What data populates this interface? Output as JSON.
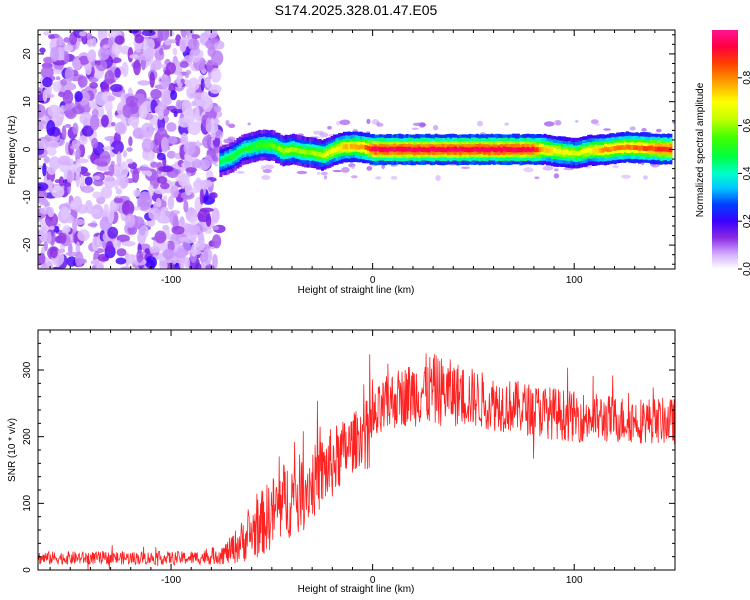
{
  "chart_data": [
    {
      "type": "heatmap",
      "title": "S174.2025.328.01.47.E05",
      "xlabel": "Height of straight line (km)",
      "ylabel": "Frequency (Hz)",
      "xlim": [
        -166,
        150
      ],
      "ylim": [
        -25,
        25
      ],
      "xticks": [
        -100,
        0,
        100
      ],
      "yticks": [
        -20,
        -10,
        0,
        10,
        20
      ],
      "colorbar": {
        "label": "Normalized spectral amplitude",
        "range": [
          0,
          1
        ],
        "ticks": [
          "0.0",
          "0.2",
          "0.4",
          "0.6",
          "0.8"
        ]
      },
      "noise_region": {
        "x_range": [
          -166,
          -80
        ],
        "freq_range": [
          -25,
          25
        ],
        "amplitude": "0.05-0.2"
      },
      "signal_ridge": [
        {
          "x": -76,
          "freq": -2.5,
          "amp": 0.45
        },
        {
          "x": -70,
          "freq": -1.5,
          "amp": 0.5
        },
        {
          "x": -65,
          "freq": 0.0,
          "amp": 0.5
        },
        {
          "x": -60,
          "freq": 0.5,
          "amp": 0.5
        },
        {
          "x": -55,
          "freq": 1.0,
          "amp": 0.55
        },
        {
          "x": -50,
          "freq": 0.8,
          "amp": 0.55
        },
        {
          "x": -45,
          "freq": -0.3,
          "amp": 0.6
        },
        {
          "x": -40,
          "freq": 0.0,
          "amp": 0.6
        },
        {
          "x": -35,
          "freq": -0.5,
          "amp": 0.6
        },
        {
          "x": -30,
          "freq": -0.7,
          "amp": 0.6
        },
        {
          "x": -25,
          "freq": -1.2,
          "amp": 0.65
        },
        {
          "x": -20,
          "freq": -0.2,
          "amp": 0.7
        },
        {
          "x": -15,
          "freq": 0.5,
          "amp": 0.75
        },
        {
          "x": -10,
          "freq": 0.6,
          "amp": 0.75
        },
        {
          "x": -5,
          "freq": 0.4,
          "amp": 0.8
        },
        {
          "x": 0,
          "freq": 0.0,
          "amp": 0.95
        },
        {
          "x": 40,
          "freq": 0.0,
          "amp": 0.95
        },
        {
          "x": 78,
          "freq": 0.0,
          "amp": 0.95
        },
        {
          "x": 85,
          "freq": 0.0,
          "amp": 0.75
        },
        {
          "x": 93,
          "freq": -0.5,
          "amp": 0.7
        },
        {
          "x": 100,
          "freq": -0.8,
          "amp": 0.65
        },
        {
          "x": 107,
          "freq": -0.2,
          "amp": 0.7
        },
        {
          "x": 115,
          "freq": 0.0,
          "amp": 0.8
        },
        {
          "x": 125,
          "freq": 0.5,
          "amp": 0.8
        },
        {
          "x": 135,
          "freq": 0.3,
          "amp": 0.85
        },
        {
          "x": 148,
          "freq": 0.0,
          "amp": 0.9
        }
      ]
    },
    {
      "type": "line",
      "xlabel": "Height of straight line (km)",
      "ylabel": "SNR (10 * v/v)",
      "xlim": [
        -166,
        150
      ],
      "ylim": [
        0,
        360
      ],
      "xticks": [
        -100,
        0,
        100
      ],
      "yticks": [
        0,
        100,
        200,
        300
      ],
      "color": "#ff2020",
      "series": [
        {
          "name": "SNR",
          "x": [
            -166,
            -150,
            -130,
            -110,
            -90,
            -80,
            -72,
            -66,
            -60,
            -55,
            -50,
            -45,
            -40,
            -35,
            -30,
            -25,
            -20,
            -15,
            -10,
            -5,
            0,
            5,
            10,
            15,
            20,
            25,
            30,
            40,
            50,
            60,
            70,
            80,
            90,
            100,
            110,
            120,
            130,
            140,
            150
          ],
          "mean": [
            18,
            18,
            18,
            18,
            18,
            20,
            26,
            40,
            55,
            70,
            85,
            100,
            110,
            120,
            130,
            145,
            160,
            175,
            190,
            205,
            220,
            240,
            255,
            260,
            265,
            270,
            270,
            265,
            258,
            250,
            245,
            240,
            235,
            230,
            228,
            226,
            225,
            224,
            223
          ],
          "amplitude": [
            10,
            10,
            10,
            10,
            10,
            12,
            18,
            30,
            40,
            50,
            55,
            60,
            60,
            55,
            55,
            55,
            55,
            50,
            45,
            45,
            45,
            45,
            45,
            45,
            50,
            55,
            55,
            50,
            45,
            42,
            40,
            40,
            40,
            38,
            38,
            36,
            35,
            35,
            35
          ]
        }
      ]
    }
  ]
}
